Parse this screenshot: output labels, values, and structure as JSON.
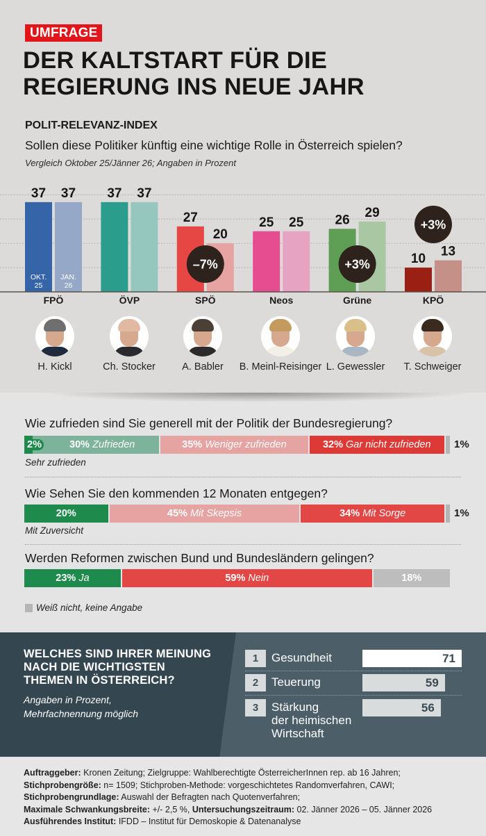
{
  "header": {
    "badge": "UMFRAGE",
    "headline_line1": "DER KALTSTART FÜR DIE",
    "headline_line2": "REGIERUNG INS NEUE JAHR",
    "kicker": "POLIT-RELEVANZ-INDEX",
    "question": "Sollen diese Politiker künftig eine wichtige Rolle in Österreich spielen?",
    "note": "Vergleich Oktober 25/Jänner 26; Angaben in Prozent"
  },
  "chart_data": {
    "type": "bar",
    "title": "POLIT-RELEVANZ-INDEX",
    "subtitle": "Sollen diese Politiker künftig eine wichtige Rolle in Österreich spielen?",
    "xlabel": "",
    "ylabel": "Angaben in Prozent",
    "ylim": [
      0,
      40
    ],
    "grid": true,
    "series_labels_inside_first_group": [
      "OKT.\n25",
      "JAN.\n26"
    ],
    "series_label_lines": [
      [
        "OKT.",
        "25"
      ],
      [
        "JAN.",
        "26"
      ]
    ],
    "categories": [
      "FPÖ",
      "ÖVP",
      "SPÖ",
      "Neos",
      "Grüne",
      "KPÖ"
    ],
    "series": [
      {
        "name": "Oktober 25",
        "values": [
          37,
          37,
          27,
          25,
          26,
          10
        ]
      },
      {
        "name": "Jänner 26",
        "values": [
          37,
          37,
          20,
          25,
          29,
          13
        ]
      }
    ],
    "colors": {
      "Oktober 25": [
        "#3564a8",
        "#2a9d8c",
        "#e64744",
        "#e64d90",
        "#5e9e55",
        "#9b2014"
      ],
      "Jänner 26": [
        "#95a8c8",
        "#95c7bf",
        "#e6a3a2",
        "#e6a3c2",
        "#a8c7a2",
        "#c49088"
      ]
    },
    "annotations": [
      {
        "category": "SPÖ",
        "text": "–7%",
        "placement": "inside-bars"
      },
      {
        "category": "Grüne",
        "text": "+3%",
        "placement": "inside-bars"
      },
      {
        "category": "KPÖ",
        "text": "+3%",
        "placement": "above-bars"
      }
    ],
    "politicians": [
      "H. Kickl",
      "Ch. Stocker",
      "A. Babler",
      "B. Meinl-Reisinger",
      "L. Gewessler",
      "T. Schweiger"
    ]
  },
  "portraits": [
    {
      "name": "H. Kickl",
      "hair": "#6f6f6f",
      "body": "#1f2a3e"
    },
    {
      "name": "Ch. Stocker",
      "hair": "#e1b9a3",
      "body": "#2a2a2e"
    },
    {
      "name": "A. Babler",
      "hair": "#4a4036",
      "body": "#2b2b2b"
    },
    {
      "name": "B. Meinl-Reisinger",
      "hair": "#c49a5e",
      "body": "#f3efe6"
    },
    {
      "name": "L. Gewessler",
      "hair": "#d9c08a",
      "body": "#a9b7c5"
    },
    {
      "name": "T. Schweiger",
      "hair": "#3a2a20",
      "body": "#d8c3a8"
    }
  ],
  "survey": [
    {
      "question": "Wie zufrieden sind Sie generell mit der Politik der Bundesregierung?",
      "segments": [
        {
          "value": 2,
          "pct": "2%",
          "label": "",
          "color": "#1e8a4c"
        },
        {
          "value": 30,
          "pct": "30%",
          "label": "Zufrieden",
          "color": "#7db39a"
        },
        {
          "value": 35,
          "pct": "35%",
          "label": "Weniger zufrieden",
          "color": "#e6a3a2"
        },
        {
          "value": 32,
          "pct": "32%",
          "label": "Gar nicht zufrieden",
          "color": "#dd3a35"
        },
        {
          "value": 1,
          "pct": "",
          "label": "",
          "color": "#b5b5b5"
        }
      ],
      "outside_value": "1%",
      "sublabel": "Sehr zufrieden"
    },
    {
      "question": "Wie Sehen Sie den kommenden 12 Monaten entgegen?",
      "segments": [
        {
          "value": 20,
          "pct": "20%",
          "label": "",
          "color": "#1e8a4c"
        },
        {
          "value": 45,
          "pct": "45%",
          "label": "Mit Skepsis",
          "color": "#e6a3a2"
        },
        {
          "value": 34,
          "pct": "34%",
          "label": "Mit Sorge",
          "color": "#e24745"
        },
        {
          "value": 1,
          "pct": "",
          "label": "",
          "color": "#b5b5b5"
        }
      ],
      "outside_value": "1%",
      "sublabel": "Mit Zuversicht"
    },
    {
      "question": "Werden Reformen zwischen Bund und Bundesländern gelingen?",
      "segments": [
        {
          "value": 23,
          "pct": "23%",
          "label": "Ja",
          "color": "#1e8a4c"
        },
        {
          "value": 59,
          "pct": "59%",
          "label": "Nein",
          "color": "#e24745"
        },
        {
          "value": 18,
          "pct": "18%",
          "label": "",
          "color": "#bdbdbd"
        }
      ],
      "outside_value": "",
      "sublabel": ""
    }
  ],
  "legend": {
    "label": "Weiß nicht, keine Angabe"
  },
  "topics": {
    "title_line1": "WELCHES SIND IHRER MEINUNG",
    "title_line2": "NACH DIE WICHTIGSTEN",
    "title_line3": "THEMEN IN ÖSTERREICH?",
    "sub_line1": "Angaben in Prozent,",
    "sub_line2": "Mehrfachnennung möglich",
    "items": [
      {
        "rank": "1",
        "label_lines": [
          "Gesundheit"
        ],
        "value": 71
      },
      {
        "rank": "2",
        "label_lines": [
          "Teuerung"
        ],
        "value": 59
      },
      {
        "rank": "3",
        "label_lines": [
          "Stärkung",
          "der heimischen",
          "Wirtschaft"
        ],
        "value": 56
      }
    ]
  },
  "footer": [
    [
      {
        "b": "Auftraggeber:"
      },
      {
        "t": " Kronen Zeitung; Zielgruppe: Wahlberechtigte ÖsterreicherInnen rep. ab 16 Jahren;"
      }
    ],
    [
      {
        "b": "Stichprobengröße:"
      },
      {
        "t": " n= 1509; Stichproben-Methode: vorgeschichtetes Randomverfahren, CAWI;"
      }
    ],
    [
      {
        "b": "Stichprobengrundlage:"
      },
      {
        "t": " Auswahl der Befragten nach Quotenverfahren;"
      }
    ],
    [
      {
        "b": "Maximale Schwankungsbreite:"
      },
      {
        "t": " +/- 2,5 %, "
      },
      {
        "b": "Untersuchungszeitraum:"
      },
      {
        "t": " 02. Jänner 2026 – 05. Jänner 2026"
      }
    ],
    [
      {
        "b": "Ausführendes Institut:"
      },
      {
        "t": " IFDD – Institut für Demoskopie & Datenanalyse"
      }
    ]
  ]
}
